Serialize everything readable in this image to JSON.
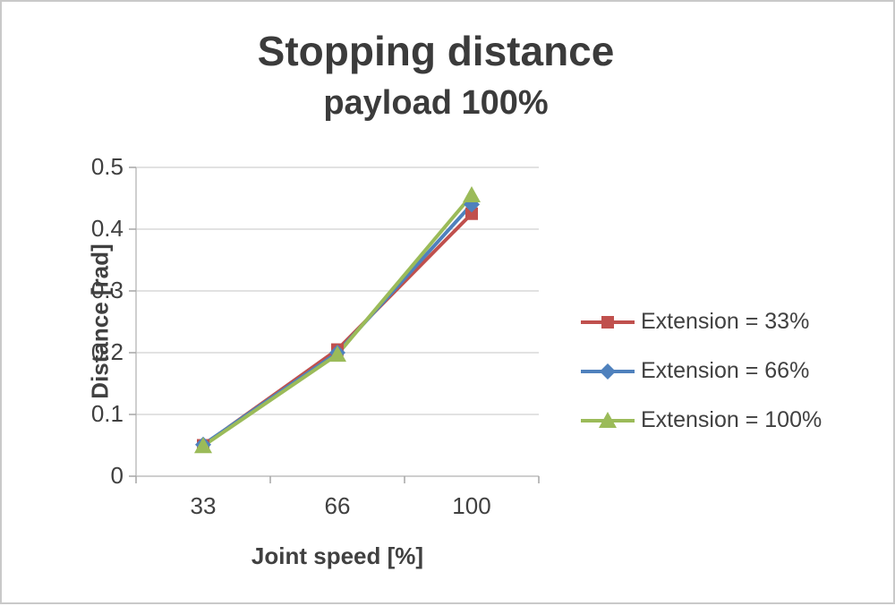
{
  "chart_data": {
    "type": "line",
    "title": "Stopping distance",
    "subtitle": "payload 100%",
    "xlabel": "Joint speed [%]",
    "ylabel": "Distance [rad]",
    "categories": [
      33,
      66,
      100
    ],
    "x_tick_labels": [
      "33",
      "66",
      "100"
    ],
    "y_ticks": [
      0,
      0.1,
      0.2,
      0.3,
      0.4,
      0.5
    ],
    "y_tick_labels": [
      "0",
      "0.1",
      "0.2",
      "0.3",
      "0.4",
      "0.5"
    ],
    "ylim": [
      0,
      0.5
    ],
    "grid": true,
    "legend_position": "right",
    "series": [
      {
        "name": "Extension = 33%",
        "color": "#c0504d",
        "marker": "square",
        "values": [
          0.05,
          0.205,
          0.425
        ]
      },
      {
        "name": "Extension = 66%",
        "color": "#4f81bd",
        "marker": "diamond",
        "values": [
          0.051,
          0.2,
          0.44
        ]
      },
      {
        "name": "Extension = 100%",
        "color": "#9bbb59",
        "marker": "triangle",
        "values": [
          0.049,
          0.197,
          0.455
        ]
      }
    ],
    "colors": {
      "grid": "#d9d9d9",
      "axis": "#bfbfbf",
      "tick": "#a6a6a6",
      "text": "#404040"
    }
  }
}
